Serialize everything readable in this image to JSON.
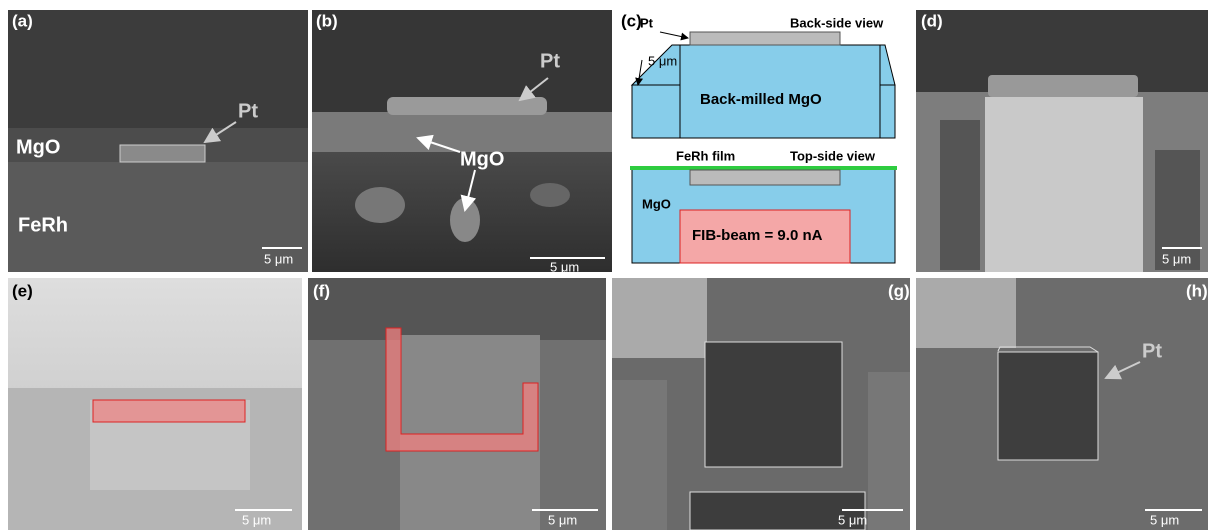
{
  "panels": [
    {
      "label": "(a)",
      "annotations": [
        "MgO",
        "FeRh",
        "Pt"
      ],
      "scale_bar": "5 μm"
    },
    {
      "label": "(b)",
      "annotations": [
        "Pt",
        "MgO"
      ],
      "scale_bar": "5 μm"
    },
    {
      "label": "(c)",
      "back_side": {
        "pt": "Pt",
        "title": "Back-side view",
        "dimension": "5 μm",
        "region": "Back-milled MgO"
      },
      "top_side": {
        "film": "FeRh film",
        "title": "Top-side view",
        "substrate": "MgO",
        "beam": "FIB-beam = 9.0 nA"
      }
    },
    {
      "label": "(d)",
      "scale_bar": "5 μm"
    },
    {
      "label": "(e)",
      "scale_bar": "5 μm"
    },
    {
      "label": "(f)",
      "scale_bar": "5 μm"
    },
    {
      "label": "(g)",
      "scale_bar": "5 μm"
    },
    {
      "label": "(h)",
      "annotations": [
        "Pt"
      ],
      "scale_bar": "5 μm"
    }
  ]
}
